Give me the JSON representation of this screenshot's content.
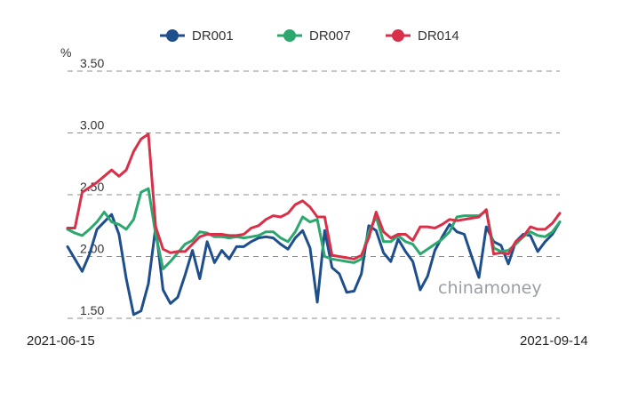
{
  "chart_data": {
    "type": "line",
    "unit_label": "%",
    "y_ticks": [
      "3.50",
      "3.00",
      "2.50",
      "2.00",
      "1.50"
    ],
    "ylim": [
      1.5,
      3.5
    ],
    "x_start_label": "2021-06-15",
    "x_end_label": "2021-09-14",
    "grid": true,
    "legend_position": "top-center",
    "watermark": "chinamoney",
    "series": [
      {
        "name": "DR001",
        "color": "#1f4e8c",
        "values": [
          2.08,
          1.98,
          1.88,
          2.02,
          2.22,
          2.28,
          2.34,
          2.18,
          1.82,
          1.53,
          1.56,
          1.78,
          2.24,
          1.73,
          1.62,
          1.67,
          1.85,
          2.05,
          1.82,
          2.12,
          1.95,
          2.05,
          1.98,
          2.08,
          2.08,
          2.12,
          2.15,
          2.16,
          2.15,
          2.1,
          2.06,
          2.15,
          2.21,
          2.07,
          1.63,
          2.21,
          1.91,
          1.86,
          1.71,
          1.72,
          1.86,
          2.25,
          2.21,
          2.03,
          1.96,
          2.14,
          2.04,
          1.96,
          1.73,
          1.84,
          2.05,
          2.16,
          2.26,
          2.2,
          2.18,
          2.0,
          1.83,
          2.24,
          2.12,
          2.09,
          1.94,
          2.12,
          2.18,
          2.17,
          2.04,
          2.12,
          2.18,
          2.28
        ]
      },
      {
        "name": "DR007",
        "color": "#2ca86e",
        "values": [
          2.22,
          2.19,
          2.17,
          2.22,
          2.28,
          2.36,
          2.28,
          2.26,
          2.22,
          2.3,
          2.52,
          2.55,
          2.18,
          1.9,
          1.96,
          2.03,
          2.1,
          2.13,
          2.2,
          2.19,
          2.16,
          2.16,
          2.15,
          2.16,
          2.15,
          2.16,
          2.17,
          2.2,
          2.2,
          2.15,
          2.12,
          2.2,
          2.32,
          2.28,
          2.3,
          2.0,
          1.98,
          1.97,
          1.96,
          1.95,
          1.98,
          2.2,
          2.32,
          2.12,
          2.12,
          2.17,
          2.12,
          2.1,
          2.02,
          2.06,
          2.1,
          2.14,
          2.2,
          2.32,
          2.33,
          2.33,
          2.33,
          2.37,
          2.07,
          2.04,
          2.05,
          2.1,
          2.16,
          2.2,
          2.17,
          2.16,
          2.2,
          2.28
        ]
      },
      {
        "name": "DR014",
        "color": "#d9304a",
        "values": [
          2.23,
          2.23,
          2.52,
          2.56,
          2.6,
          2.65,
          2.7,
          2.65,
          2.7,
          2.85,
          2.95,
          2.99,
          2.24,
          2.06,
          2.03,
          2.04,
          2.04,
          2.1,
          2.16,
          2.18,
          2.18,
          2.18,
          2.17,
          2.17,
          2.18,
          2.23,
          2.25,
          2.3,
          2.33,
          2.32,
          2.35,
          2.42,
          2.45,
          2.4,
          2.32,
          2.32,
          2.01,
          2.0,
          1.99,
          1.98,
          2.01,
          2.15,
          2.36,
          2.2,
          2.15,
          2.18,
          2.18,
          2.13,
          2.24,
          2.24,
          2.23,
          2.26,
          2.3,
          2.29,
          2.3,
          2.31,
          2.32,
          2.38,
          2.02,
          2.03,
          2.02,
          2.12,
          2.16,
          2.24,
          2.22,
          2.22,
          2.27,
          2.35
        ]
      }
    ]
  }
}
